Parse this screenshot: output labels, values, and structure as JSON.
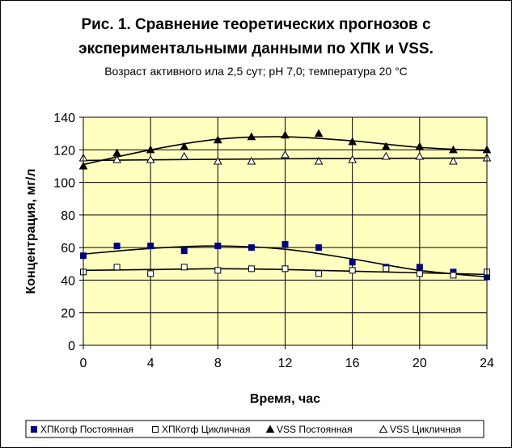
{
  "chart_data": {
    "type": "scatter",
    "title_line1": "Рис. 1. Сравнение теоретических прогнозов с",
    "title_line2": "экспериментальными данными по ХПК и VSS.",
    "subtitle": "Возраст активного ила 2,5 сут; pH  7,0; температура 20 °С",
    "xlabel": "Время, час",
    "ylabel": "Концентрация, мг/л",
    "xlim": [
      0,
      24
    ],
    "ylim": [
      0,
      140
    ],
    "xticks": [
      "0",
      "4",
      "8",
      "12",
      "16",
      "20",
      "24"
    ],
    "yticks": [
      "0",
      "20",
      "40",
      "60",
      "80",
      "100",
      "120",
      "140"
    ],
    "grid": true,
    "legend_position": "bottom",
    "plot_background": "#ffffc0",
    "series": [
      {
        "name": "ХПКотф  Постоянная",
        "marker": "filled-square",
        "color": "#000080",
        "x": [
          0,
          2,
          4,
          6,
          8,
          10,
          12,
          14,
          16,
          18,
          20,
          22,
          24
        ],
        "y": [
          55,
          61,
          61,
          58,
          61,
          60,
          62,
          60,
          51,
          48,
          48,
          45,
          42
        ],
        "trend": [
          [
            0,
            56
          ],
          [
            4,
            59.5
          ],
          [
            8,
            61
          ],
          [
            12,
            59
          ],
          [
            16,
            53
          ],
          [
            20,
            46
          ],
          [
            24,
            42
          ]
        ]
      },
      {
        "name": "ХПКотф  Цикличная",
        "marker": "open-square",
        "color": "#000000",
        "x": [
          0,
          2,
          4,
          6,
          8,
          10,
          12,
          14,
          16,
          18,
          20,
          22,
          24
        ],
        "y": [
          45,
          48,
          44,
          48,
          46,
          47,
          47,
          44,
          46,
          47,
          44,
          43,
          45
        ],
        "trend": [
          [
            0,
            46
          ],
          [
            4,
            46.5
          ],
          [
            8,
            47
          ],
          [
            12,
            46.5
          ],
          [
            16,
            45.5
          ],
          [
            20,
            44.5
          ],
          [
            24,
            43.5
          ]
        ]
      },
      {
        "name": "VSS Постоянная",
        "marker": "filled-triangle",
        "color": "#000000",
        "x": [
          0,
          2,
          4,
          6,
          8,
          10,
          12,
          14,
          16,
          18,
          20,
          22,
          24
        ],
        "y": [
          110,
          118,
          120,
          122,
          126,
          128,
          129,
          130,
          125,
          122,
          122,
          120,
          120
        ],
        "trend": [
          [
            0,
            111
          ],
          [
            4,
            120
          ],
          [
            8,
            126.5
          ],
          [
            12,
            128
          ],
          [
            16,
            125.5
          ],
          [
            20,
            121.5
          ],
          [
            24,
            119.5
          ]
        ]
      },
      {
        "name": "VSS  Цикличная",
        "marker": "open-triangle",
        "color": "#000000",
        "x": [
          0,
          2,
          4,
          6,
          8,
          10,
          12,
          14,
          16,
          18,
          20,
          22,
          24
        ],
        "y": [
          115,
          114,
          114,
          116,
          113,
          113,
          117,
          113,
          114,
          116,
          116,
          113,
          115
        ],
        "trend": [
          [
            0,
            113.5
          ],
          [
            12,
            114.5
          ],
          [
            24,
            115
          ]
        ]
      }
    ]
  }
}
